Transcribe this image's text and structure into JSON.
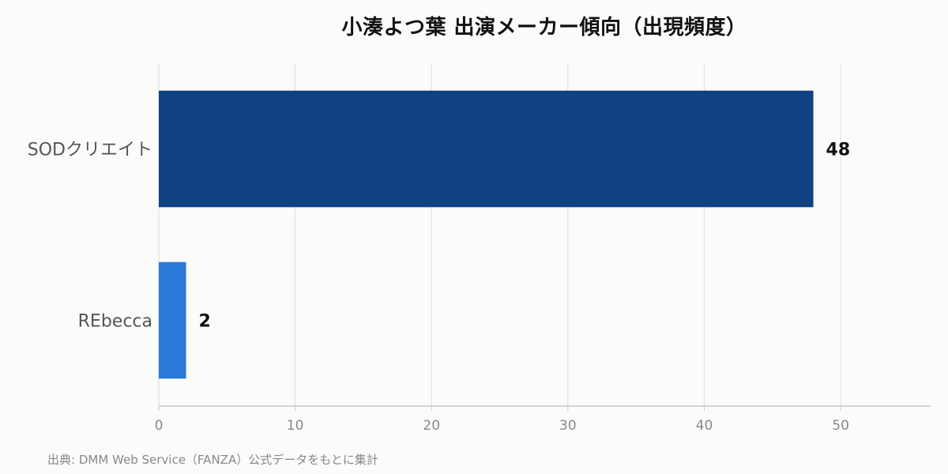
{
  "title": "小湊よつ葉 出演メーカー傾向（出現頻度）",
  "source": "出典: DMM Web Service（FANZA）公式データをもとに集計",
  "colors": {
    "background": "#fbfbf9",
    "grid": "#dddddd",
    "axis": "#c8c8c8",
    "tick_label": "#888888",
    "category_label": "#555555",
    "value_label": "#111111"
  },
  "chart_data": {
    "type": "bar",
    "orientation": "horizontal",
    "title": "小湊よつ葉 出演メーカー傾向（出現頻度）",
    "categories": [
      "SODクリエイト",
      "REbecca"
    ],
    "values": [
      48,
      2
    ],
    "bar_colors": [
      "#114181",
      "#2979d8"
    ],
    "xlim": [
      0,
      56.6
    ],
    "xticks": [
      0,
      10,
      20,
      30,
      40,
      50
    ],
    "xlabel": "",
    "ylabel": "",
    "grid": "vertical",
    "legend": "none",
    "data_labels": true
  }
}
